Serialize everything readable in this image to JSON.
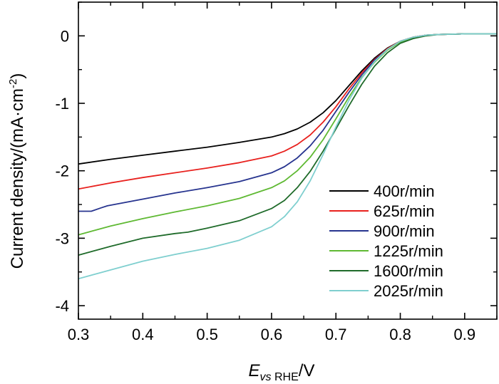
{
  "chart_data": {
    "type": "line",
    "title": "",
    "xlabel": {
      "main": "E",
      "sub": "vs RHE",
      "unit": "/V"
    },
    "ylabel": {
      "main": "Current density/(mA·cm",
      "sup": "-2",
      "close": ")"
    },
    "xlim": [
      0.3,
      0.95
    ],
    "ylim": [
      -4.2,
      0.5
    ],
    "xticks": [
      0.3,
      0.4,
      0.5,
      0.6,
      0.7,
      0.8,
      0.9
    ],
    "xtick_labels": [
      "0.3",
      "0.4",
      "0.5",
      "0.6",
      "0.7",
      "0.8",
      "0.9"
    ],
    "yticks": [
      0,
      -1,
      -2,
      -3,
      -4
    ],
    "ytick_labels": [
      "0",
      "-1",
      "-2",
      "-3",
      "-4"
    ],
    "grid": false,
    "legend_position": "bottom-right",
    "series": [
      {
        "name": "400r/min",
        "color": "#000000",
        "x": [
          0.3,
          0.35,
          0.4,
          0.45,
          0.5,
          0.55,
          0.6,
          0.62,
          0.64,
          0.66,
          0.68,
          0.7,
          0.72,
          0.74,
          0.76,
          0.78,
          0.8,
          0.82,
          0.84,
          0.86,
          0.88,
          0.9,
          0.95
        ],
        "y": [
          -1.9,
          -1.83,
          -1.77,
          -1.71,
          -1.65,
          -1.58,
          -1.5,
          -1.45,
          -1.38,
          -1.28,
          -1.14,
          -0.96,
          -0.74,
          -0.52,
          -0.33,
          -0.18,
          -0.08,
          -0.02,
          0.01,
          0.02,
          0.025,
          0.03,
          0.03
        ]
      },
      {
        "name": "625r/min",
        "color": "#e8211e",
        "x": [
          0.3,
          0.35,
          0.4,
          0.45,
          0.5,
          0.55,
          0.6,
          0.62,
          0.64,
          0.66,
          0.68,
          0.7,
          0.72,
          0.74,
          0.76,
          0.78,
          0.8,
          0.82,
          0.84,
          0.86,
          0.88,
          0.9,
          0.95
        ],
        "y": [
          -2.27,
          -2.18,
          -2.1,
          -2.03,
          -1.96,
          -1.88,
          -1.78,
          -1.71,
          -1.61,
          -1.47,
          -1.28,
          -1.05,
          -0.79,
          -0.55,
          -0.35,
          -0.19,
          -0.08,
          -0.02,
          0.01,
          0.02,
          0.025,
          0.03,
          0.03
        ]
      },
      {
        "name": "900r/min",
        "color": "#27348f",
        "x": [
          0.3,
          0.32,
          0.335,
          0.345,
          0.4,
          0.45,
          0.5,
          0.55,
          0.6,
          0.62,
          0.64,
          0.66,
          0.68,
          0.7,
          0.72,
          0.74,
          0.76,
          0.78,
          0.8,
          0.82,
          0.84,
          0.86,
          0.88,
          0.9,
          0.95
        ],
        "y": [
          -2.6,
          -2.6,
          -2.55,
          -2.52,
          -2.42,
          -2.33,
          -2.25,
          -2.16,
          -2.03,
          -1.94,
          -1.81,
          -1.63,
          -1.4,
          -1.12,
          -0.84,
          -0.58,
          -0.36,
          -0.2,
          -0.09,
          -0.03,
          0.01,
          0.02,
          0.025,
          0.03,
          0.03
        ]
      },
      {
        "name": "1225r/min",
        "color": "#5fb933",
        "x": [
          0.3,
          0.35,
          0.4,
          0.45,
          0.5,
          0.55,
          0.6,
          0.62,
          0.64,
          0.66,
          0.68,
          0.7,
          0.72,
          0.74,
          0.76,
          0.78,
          0.8,
          0.82,
          0.84,
          0.86,
          0.88,
          0.9,
          0.95
        ],
        "y": [
          -2.95,
          -2.82,
          -2.71,
          -2.61,
          -2.52,
          -2.41,
          -2.25,
          -2.15,
          -2.0,
          -1.8,
          -1.54,
          -1.23,
          -0.91,
          -0.62,
          -0.39,
          -0.21,
          -0.09,
          -0.03,
          0.01,
          0.02,
          0.025,
          0.03,
          0.03
        ]
      },
      {
        "name": "1600r/min",
        "color": "#1f6b2a",
        "x": [
          0.3,
          0.35,
          0.4,
          0.45,
          0.47,
          0.5,
          0.55,
          0.6,
          0.62,
          0.64,
          0.66,
          0.68,
          0.7,
          0.72,
          0.74,
          0.76,
          0.78,
          0.8,
          0.82,
          0.84,
          0.86,
          0.88,
          0.9,
          0.95
        ],
        "y": [
          -3.25,
          -3.12,
          -3.0,
          -2.93,
          -2.91,
          -2.85,
          -2.74,
          -2.56,
          -2.44,
          -2.25,
          -2.01,
          -1.71,
          -1.38,
          -1.04,
          -0.72,
          -0.45,
          -0.25,
          -0.11,
          -0.04,
          0.0,
          0.02,
          0.025,
          0.03,
          0.03
        ]
      },
      {
        "name": "2025r/min",
        "color": "#7fcfcf",
        "x": [
          0.3,
          0.35,
          0.4,
          0.45,
          0.5,
          0.55,
          0.6,
          0.62,
          0.64,
          0.66,
          0.68,
          0.7,
          0.72,
          0.74,
          0.76,
          0.78,
          0.8,
          0.82,
          0.84,
          0.86,
          0.88,
          0.9,
          0.95
        ],
        "y": [
          -3.6,
          -3.47,
          -3.34,
          -3.24,
          -3.15,
          -3.03,
          -2.83,
          -2.68,
          -2.46,
          -2.15,
          -1.76,
          -1.35,
          -0.96,
          -0.63,
          -0.38,
          -0.2,
          -0.08,
          -0.02,
          0.01,
          0.02,
          0.025,
          0.03,
          0.03
        ]
      }
    ]
  }
}
